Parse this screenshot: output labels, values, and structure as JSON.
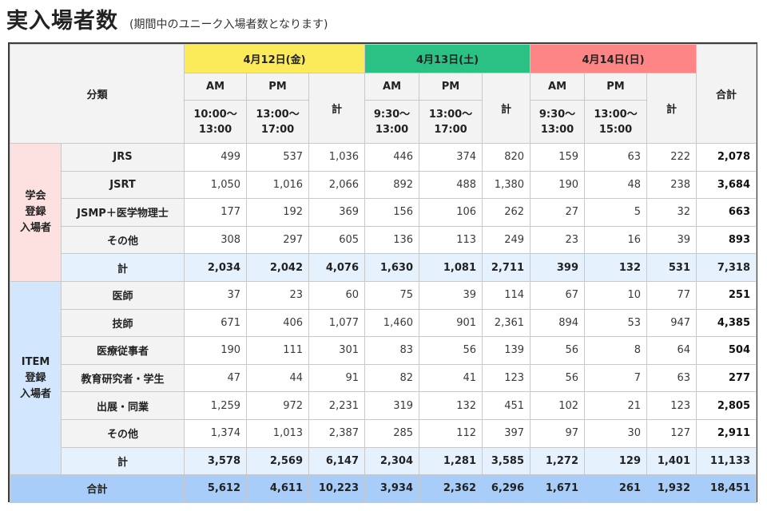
{
  "page": {
    "title": "実入場者数",
    "subtitle": "(期間中のユニーク入場者数となります)"
  },
  "table": {
    "header": {
      "category": "分類",
      "total": "合計",
      "days": [
        {
          "label": "4月12日(金)",
          "color": "#fbeb5b",
          "am": "AM",
          "pm": "PM",
          "sum": "計",
          "am_time": [
            "10:00〜",
            "13:00"
          ],
          "pm_time": [
            "13:00〜",
            "17:00"
          ]
        },
        {
          "label": "4月13日(土)",
          "color": "#2cc184",
          "am": "AM",
          "pm": "PM",
          "sum": "計",
          "am_time": [
            "9:30〜",
            "13:00"
          ],
          "pm_time": [
            "13:00〜",
            "17:00"
          ]
        },
        {
          "label": "4月14日(日)",
          "color": "#fe8585",
          "am": "AM",
          "pm": "PM",
          "sum": "計",
          "am_time": [
            "9:30〜",
            "13:00"
          ],
          "pm_time": [
            "13:00〜",
            "15:00"
          ]
        }
      ]
    },
    "groups": [
      {
        "label": [
          "学会",
          "登録",
          "入場者"
        ],
        "rows": [
          {
            "label": "JRS",
            "values": [
              "499",
              "537",
              "1,036",
              "446",
              "374",
              "820",
              "159",
              "63",
              "222",
              "2,078"
            ]
          },
          {
            "label": "JSRT",
            "values": [
              "1,050",
              "1,016",
              "2,066",
              "892",
              "488",
              "1,380",
              "190",
              "48",
              "238",
              "3,684"
            ]
          },
          {
            "label": "JSMP＋医学物理士",
            "values": [
              "177",
              "192",
              "369",
              "156",
              "106",
              "262",
              "27",
              "5",
              "32",
              "663"
            ]
          },
          {
            "label": "その他",
            "values": [
              "308",
              "297",
              "605",
              "136",
              "113",
              "249",
              "23",
              "16",
              "39",
              "893"
            ]
          }
        ],
        "subtotal": {
          "label": "計",
          "values": [
            "2,034",
            "2,042",
            "4,076",
            "1,630",
            "1,081",
            "2,711",
            "399",
            "132",
            "531",
            "7,318"
          ]
        }
      },
      {
        "label": [
          "ITEM",
          "登録",
          "入場者"
        ],
        "rows": [
          {
            "label": "医師",
            "values": [
              "37",
              "23",
              "60",
              "75",
              "39",
              "114",
              "67",
              "10",
              "77",
              "251"
            ]
          },
          {
            "label": "技師",
            "values": [
              "671",
              "406",
              "1,077",
              "1,460",
              "901",
              "2,361",
              "894",
              "53",
              "947",
              "4,385"
            ]
          },
          {
            "label": "医療従事者",
            "values": [
              "190",
              "111",
              "301",
              "83",
              "56",
              "139",
              "56",
              "8",
              "64",
              "504"
            ]
          },
          {
            "label": "教育研究者・学生",
            "values": [
              "47",
              "44",
              "91",
              "82",
              "41",
              "123",
              "56",
              "7",
              "63",
              "277"
            ]
          },
          {
            "label": "出展・同業",
            "values": [
              "1,259",
              "972",
              "2,231",
              "319",
              "132",
              "451",
              "102",
              "21",
              "123",
              "2,805"
            ]
          },
          {
            "label": "その他",
            "values": [
              "1,374",
              "1,013",
              "2,387",
              "285",
              "112",
              "397",
              "97",
              "30",
              "127",
              "2,911"
            ]
          }
        ],
        "subtotal": {
          "label": "計",
          "values": [
            "3,578",
            "2,569",
            "6,147",
            "2,304",
            "1,281",
            "3,585",
            "1,272",
            "129",
            "1,401",
            "11,133"
          ]
        }
      }
    ],
    "grand_total": {
      "label": "合計",
      "values": [
        "5,612",
        "4,611",
        "10,223",
        "3,934",
        "2,362",
        "6,296",
        "1,671",
        "261",
        "1,932",
        "18,451"
      ]
    }
  }
}
